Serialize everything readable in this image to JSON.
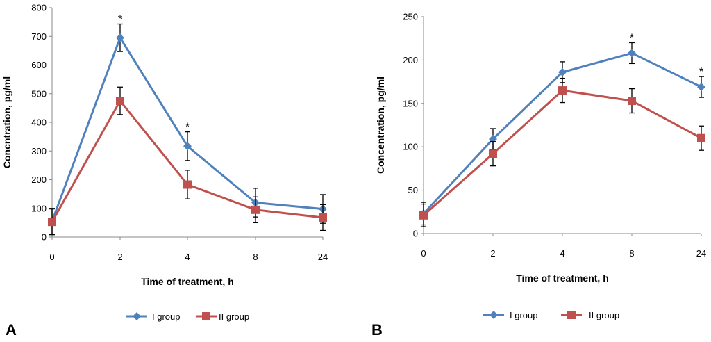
{
  "chart_data": [
    {
      "type": "line",
      "panel": "A",
      "categories": [
        "0",
        "2",
        "4",
        "8",
        "24"
      ],
      "xlabel": "Time of treatment, h",
      "ylabel": "Concntration, pg/ml",
      "ylim": [
        0,
        800
      ],
      "yticks": [
        "0",
        "100",
        "200",
        "300",
        "400",
        "500",
        "600",
        "700",
        "800"
      ],
      "series": [
        {
          "name": "I group",
          "color": "#4f81bd",
          "marker": "diamond",
          "values": [
            55,
            695,
            317,
            120,
            98
          ],
          "errors": [
            45,
            48,
            50,
            50,
            50
          ]
        },
        {
          "name": "II group",
          "color": "#c0504d",
          "marker": "square",
          "values": [
            53,
            475,
            183,
            95,
            68
          ],
          "errors": [
            45,
            48,
            50,
            45,
            45
          ]
        }
      ],
      "significance": [
        "",
        "*",
        "*",
        "",
        ""
      ]
    },
    {
      "type": "line",
      "panel": "B",
      "categories": [
        "0",
        "2",
        "4",
        "8",
        "24"
      ],
      "xlabel": "Time of treatment, h",
      "ylabel": "Concentration, pg/ml",
      "ylim": [
        0,
        250
      ],
      "yticks": [
        "0",
        "50",
        "100",
        "150",
        "200",
        "250"
      ],
      "series": [
        {
          "name": "I group",
          "color": "#4f81bd",
          "marker": "diamond",
          "values": [
            23,
            109,
            186,
            208,
            169
          ],
          "errors": [
            13,
            12,
            12,
            12,
            12
          ]
        },
        {
          "name": "II group",
          "color": "#c0504d",
          "marker": "square",
          "values": [
            21,
            92,
            165,
            153,
            110
          ],
          "errors": [
            13,
            14,
            14,
            14,
            14
          ]
        }
      ],
      "significance": [
        "",
        "",
        "",
        "*",
        "*"
      ]
    }
  ]
}
